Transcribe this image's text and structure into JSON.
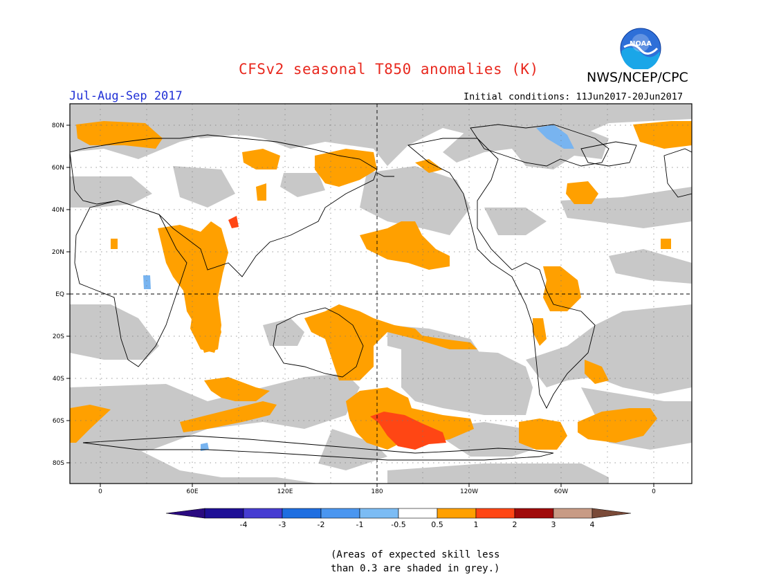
{
  "header": {
    "title": "CFSv2 seasonal T850 anomalies (K)",
    "agency": "NWS/NCEP/CPC",
    "logo_text": "NOAA",
    "period": "Jul-Aug-Sep 2017",
    "initial_conditions": "Initial conditions: 11Jun2017-20Jun2017"
  },
  "map": {
    "projection": "equirectangular",
    "lon_range": [
      -20,
      380
    ],
    "lat_range": [
      -90,
      90
    ],
    "y_ticks": [
      "80N",
      "60N",
      "40N",
      "20N",
      "EQ",
      "20S",
      "40S",
      "60S",
      "80S"
    ],
    "x_ticks": [
      "0",
      "60E",
      "120E",
      "180",
      "120W",
      "60W",
      "0"
    ],
    "grey_meaning": "low skill",
    "colors": {
      "grey": "#c8c8c8",
      "orange": "#ffa000",
      "red": "#ff3c14",
      "lightblue": "#78b4f0"
    }
  },
  "colorbar": {
    "labels": [
      "-4",
      "-3",
      "-2",
      "-1",
      "-0.5",
      "0.5",
      "1",
      "2",
      "3",
      "4"
    ],
    "colors": [
      "#1e0f96",
      "#463cd2",
      "#1e6ee1",
      "#4a96f0",
      "#7cbcf4",
      "#ffffff",
      "#ffa000",
      "#ff4614",
      "#a00a0a",
      "#c89b85"
    ],
    "arrow_left": "#2a0a80",
    "arrow_right": "#7a4a38"
  },
  "footnote": "(Areas of expected skill less\nthan 0.3 are shaded in grey.)"
}
